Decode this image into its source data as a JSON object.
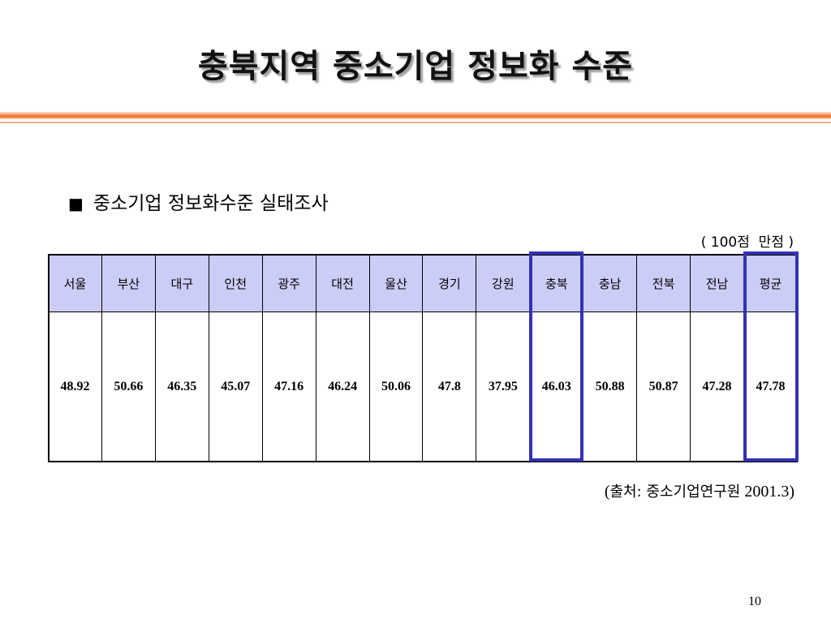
{
  "slide": {
    "title": "충북지역 중소기업 정보화 수준",
    "subtitle": "중소기업 정보화수준 실태조사",
    "bullet": "■",
    "note": "( 100점  만점 )",
    "page_number": "10"
  },
  "table": {
    "headers": [
      "서울",
      "부산",
      "대구",
      "인천",
      "광주",
      "대전",
      "울산",
      "경기",
      "강원",
      "충북",
      "충남",
      "전북",
      "전남",
      "평균"
    ],
    "values": [
      "48.92",
      "50.66",
      "46.35",
      "45.07",
      "47.16",
      "46.24",
      "50.06",
      "47.8",
      "37.95",
      "46.03",
      "50.88",
      "50.87",
      "47.28",
      "47.78"
    ],
    "highlighted_columns": [
      "충북",
      "평균"
    ],
    "highlight_color": "#3232b4",
    "header_bg_color": "#cccdf7"
  },
  "source": {
    "open": "(",
    "label": "출처: 중소기업연구원",
    "date": "2001.3)"
  },
  "colors": {
    "title_rule": "#ef6a28"
  }
}
